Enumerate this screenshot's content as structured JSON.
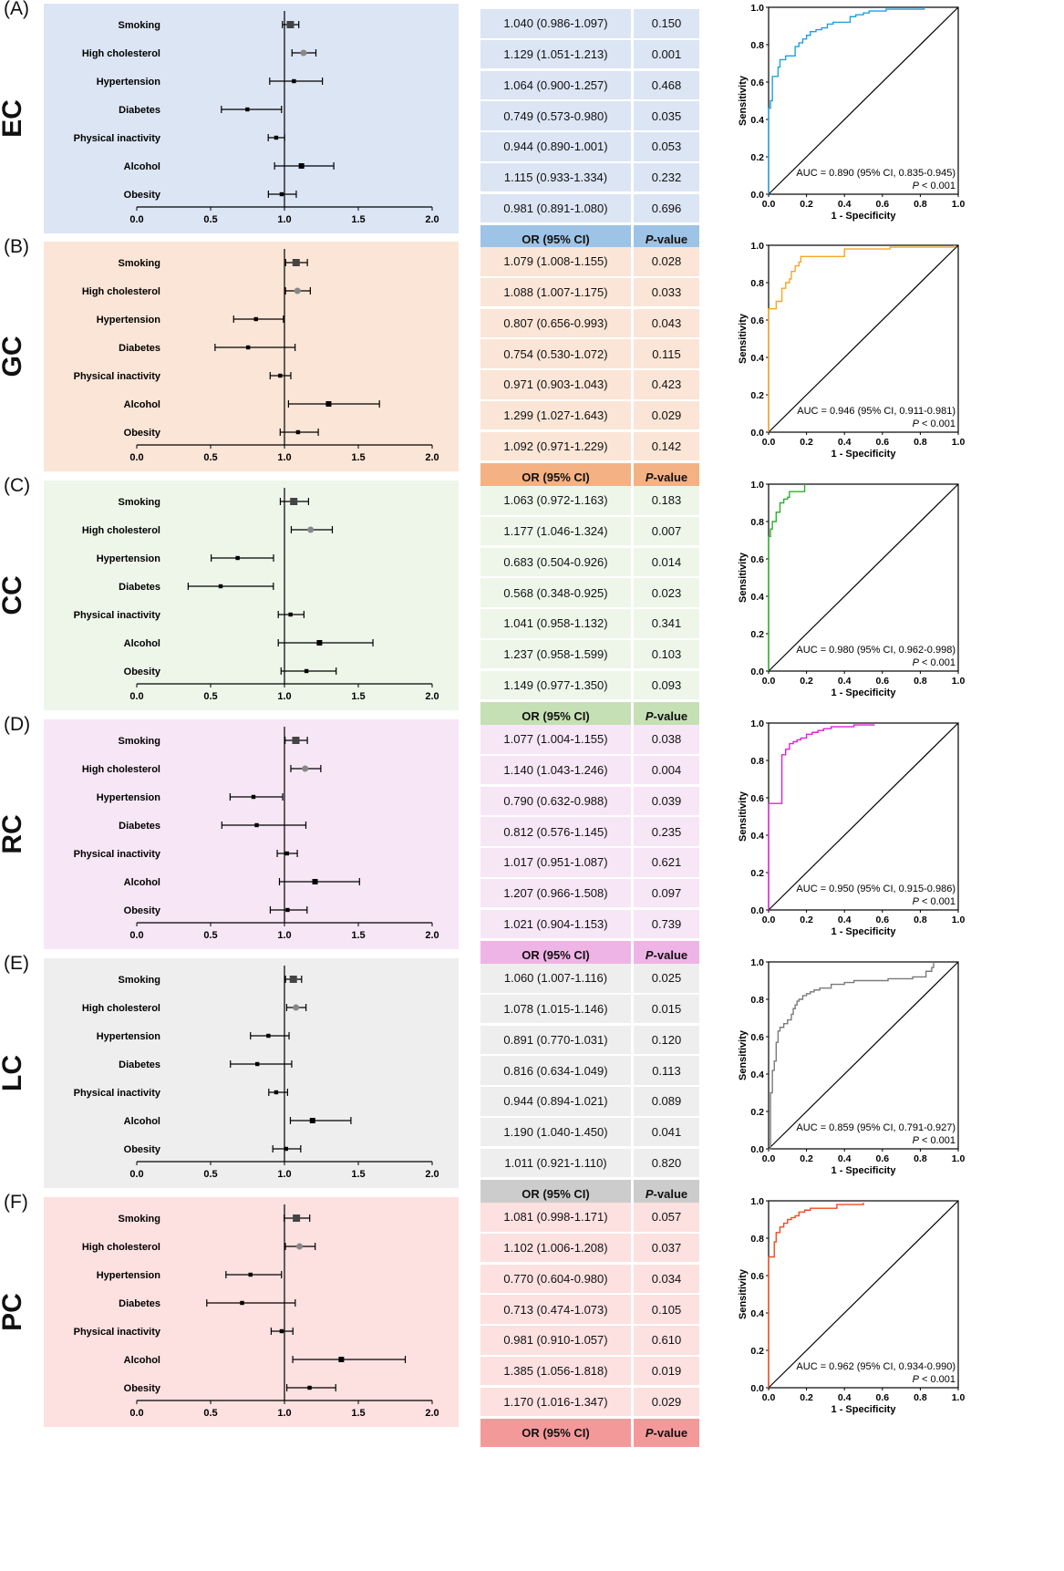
{
  "forest_axis_ticks": [
    "0.0",
    "0.5",
    "1.0",
    "1.5",
    "2.0"
  ],
  "roc_axis_ticks": [
    "0.0",
    "0.2",
    "0.4",
    "0.6",
    "0.8",
    "1.0"
  ],
  "roc_xlabel": "1 - Specificity",
  "roc_ylabel": "Sensitivity",
  "table_header": {
    "or": "OR (95% CI)",
    "p": "P-value"
  },
  "p_prefix": "P",
  "p_suffix": " < 0.001",
  "panels": [
    {
      "letter": "(A)",
      "abbr": "EC",
      "auc": "AUC = 0.890 (95% CI, 0.835-0.945)",
      "bg": "#dce5f4",
      "head": "#9dc3e6",
      "roc_color": "#1fa0e0",
      "or": [
        "1.040 (0.986-1.097)",
        "1.129 (1.051-1.213)",
        "1.064 (0.900-1.257)",
        "0.749 (0.573-0.980)",
        "0.944 (0.890-1.001)",
        "1.115 (0.933-1.334)",
        "0.981 (0.891-1.080)"
      ],
      "p": [
        "0.150",
        "0.001",
        "0.468",
        "0.035",
        "0.053",
        "0.232",
        "0.696"
      ]
    },
    {
      "letter": "(B)",
      "abbr": "GC",
      "auc": "AUC = 0.946 (95% CI, 0.911-0.981)",
      "bg": "#fbe5d6",
      "head": "#f4b183",
      "roc_color": "#f5a623",
      "or": [
        "1.079 (1.008-1.155)",
        "1.088  (1.007-1.175)",
        "0.807 (0.656-0.993)",
        "0.754 (0.530-1.072)",
        "0.971 (0.903-1.043)",
        "1.299 (1.027-1.643)",
        "1.092 (0.971-1.229)"
      ],
      "p": [
        "0.028",
        "0.033",
        "0.043",
        "0.115",
        "0.423",
        "0.029",
        "0.142"
      ]
    },
    {
      "letter": "(C)",
      "abbr": "CC",
      "auc": "AUC = 0.980 (95% CI, 0.962-0.998)",
      "bg": "#eef6ea",
      "head": "#c5e0b4",
      "roc_color": "#2db02d",
      "or": [
        "1.063 (0.972-1.163)",
        "1.177 (1.046-1.324)",
        "0.683 (0.504-0.926)",
        "0.568 (0.348-0.925)",
        "1.041 (0.958-1.132)",
        "1.237 (0.958-1.599)",
        "1.149 (0.977-1.350)"
      ],
      "p": [
        "0.183",
        "0.007",
        "0.014",
        "0.023",
        "0.341",
        "0.103",
        "0.093"
      ]
    },
    {
      "letter": "(D)",
      "abbr": "RC",
      "auc": "AUC = 0.950 (95% CI, 0.915-0.986)",
      "bg": "#f7e6f6",
      "head": "#eeb4e6",
      "roc_color": "#e020d8",
      "or": [
        "1.077 (1.004-1.155)",
        "1.140 (1.043-1.246)",
        "0.790 (0.632-0.988)",
        "0.812 (0.576-1.145)",
        "1.017 (0.951-1.087)",
        "1.207 (0.966-1.508)",
        "1.021 (0.904-1.153)"
      ],
      "p": [
        "0.038",
        "0.004",
        "0.039",
        "0.235",
        "0.621",
        "0.097",
        "0.739"
      ]
    },
    {
      "letter": "(E)",
      "abbr": "LC",
      "auc": "AUC = 0.859 (95% CI, 0.791-0.927)",
      "bg": "#eeeeee",
      "head": "#cccccc",
      "roc_color": "#7a7a7a",
      "or": [
        "1.060 (1.007-1.116)",
        "1.078 (1.015-1.146)",
        "0.891 (0.770-1.031)",
        "0.816 (0.634-1.049)",
        "0.944 (0.894-1.021)",
        "1.190 (1.040-1.450)",
        "1.011 (0.921-1.110)"
      ],
      "p": [
        "0.025",
        "0.015",
        "0.120",
        "0.113",
        "0.089",
        "0.041",
        "0.820"
      ]
    },
    {
      "letter": "(F)",
      "abbr": "PC",
      "auc": "AUC = 0.962 (95% CI, 0.934-0.990)",
      "bg": "#fde0e0",
      "head": "#f4999a",
      "roc_color": "#f04a1e",
      "or": [
        "1.081 (0.998-1.171)",
        "1.102 (1.006-1.208)",
        "0.770 (0.604-0.980)",
        "0.713 (0.474-1.073)",
        "0.981 (0.910-1.057)",
        "1.385 (1.056-1.818)",
        "1.170 (1.016-1.347)"
      ],
      "p": [
        "0.057",
        "0.037",
        "0.034",
        "0.105",
        "0.610",
        "0.019",
        "0.029"
      ]
    }
  ],
  "chart_data": [
    {
      "type": "scatter",
      "subtype": "forest",
      "panel": "A",
      "xlim": [
        0,
        2
      ],
      "categories": [
        "Smoking",
        "High cholesterol",
        "Hypertension",
        "Diabetes",
        "Physical inactivity",
        "Alcohol",
        "Obesity"
      ],
      "or": [
        1.04,
        1.129,
        1.064,
        0.749,
        0.944,
        1.115,
        0.981
      ],
      "lower": [
        0.986,
        1.051,
        0.9,
        0.573,
        0.89,
        0.933,
        0.891
      ],
      "upper": [
        1.097,
        1.213,
        1.257,
        0.98,
        1.001,
        1.334,
        1.08
      ]
    },
    {
      "type": "line",
      "subtype": "roc",
      "panel": "A",
      "xlim": [
        0,
        1
      ],
      "ylim": [
        0,
        1
      ],
      "xlabel": "1 - Specificity",
      "ylabel": "Sensitivity",
      "x": [
        0,
        0,
        0.01,
        0.01,
        0.02,
        0.02,
        0.05,
        0.05,
        0.06,
        0.09,
        0.14,
        0.14,
        0.16,
        0.18,
        0.2,
        0.22,
        0.25,
        0.28,
        0.31,
        0.34,
        0.38,
        0.43,
        0.46,
        0.5,
        0.53,
        0.57,
        0.62,
        0.82
      ],
      "y": [
        0,
        0.46,
        0.46,
        0.5,
        0.5,
        0.63,
        0.63,
        0.68,
        0.72,
        0.74,
        0.74,
        0.79,
        0.81,
        0.83,
        0.85,
        0.87,
        0.88,
        0.89,
        0.91,
        0.92,
        0.92,
        0.95,
        0.96,
        0.97,
        0.98,
        0.98,
        0.99,
        1.0
      ]
    },
    {
      "type": "scatter",
      "subtype": "forest",
      "panel": "B",
      "xlim": [
        0,
        2
      ],
      "categories": [
        "Smoking",
        "High cholesterol",
        "Hypertension",
        "Diabetes",
        "Physical inactivity",
        "Alcohol",
        "Obesity"
      ],
      "or": [
        1.079,
        1.088,
        0.807,
        0.754,
        0.971,
        1.299,
        1.092
      ],
      "lower": [
        1.008,
        1.007,
        0.656,
        0.53,
        0.903,
        1.027,
        0.971
      ],
      "upper": [
        1.155,
        1.175,
        0.993,
        1.072,
        1.043,
        1.643,
        1.229
      ]
    },
    {
      "type": "line",
      "subtype": "roc",
      "panel": "B",
      "xlim": [
        0,
        1
      ],
      "ylim": [
        0,
        1
      ],
      "xlabel": "1 - Specificity",
      "ylabel": "Sensitivity",
      "x": [
        0,
        0,
        0.04,
        0.04,
        0.07,
        0.07,
        0.09,
        0.11,
        0.12,
        0.14,
        0.16,
        0.17,
        0.4,
        0.4,
        0.64,
        0.98
      ],
      "y": [
        0,
        0.66,
        0.66,
        0.7,
        0.72,
        0.77,
        0.8,
        0.82,
        0.86,
        0.89,
        0.91,
        0.94,
        0.94,
        0.98,
        0.99,
        1.0
      ]
    },
    {
      "type": "scatter",
      "subtype": "forest",
      "panel": "C",
      "xlim": [
        0,
        2
      ],
      "categories": [
        "Smoking",
        "High cholesterol",
        "Hypertension",
        "Diabetes",
        "Physical inactivity",
        "Alcohol",
        "Obesity"
      ],
      "or": [
        1.063,
        1.177,
        0.683,
        0.568,
        1.041,
        1.237,
        1.149
      ],
      "lower": [
        0.972,
        1.046,
        0.504,
        0.348,
        0.958,
        0.958,
        0.977
      ],
      "upper": [
        1.163,
        1.324,
        0.926,
        0.925,
        1.132,
        1.599,
        1.35
      ]
    },
    {
      "type": "line",
      "subtype": "roc",
      "panel": "C",
      "xlim": [
        0,
        1
      ],
      "ylim": [
        0,
        1
      ],
      "xlabel": "1 - Specificity",
      "ylabel": "Sensitivity",
      "x": [
        0,
        0,
        0.01,
        0.01,
        0.02,
        0.02,
        0.04,
        0.06,
        0.06,
        0.08,
        0.1,
        0.11,
        0.19,
        0.19
      ],
      "y": [
        0,
        0.72,
        0.72,
        0.76,
        0.79,
        0.8,
        0.85,
        0.87,
        0.9,
        0.92,
        0.93,
        0.96,
        0.96,
        1.0
      ]
    },
    {
      "type": "scatter",
      "subtype": "forest",
      "panel": "D",
      "xlim": [
        0,
        2
      ],
      "categories": [
        "Smoking",
        "High cholesterol",
        "Hypertension",
        "Diabetes",
        "Physical inactivity",
        "Alcohol",
        "Obesity"
      ],
      "or": [
        1.077,
        1.14,
        0.79,
        0.812,
        1.017,
        1.207,
        1.021
      ],
      "lower": [
        1.004,
        1.043,
        0.632,
        0.576,
        0.951,
        0.966,
        0.904
      ],
      "upper": [
        1.155,
        1.246,
        0.988,
        1.145,
        1.087,
        1.508,
        1.153
      ]
    },
    {
      "type": "line",
      "subtype": "roc",
      "panel": "D",
      "xlim": [
        0,
        1
      ],
      "ylim": [
        0,
        1
      ],
      "xlabel": "1 - Specificity",
      "ylabel": "Sensitivity",
      "x": [
        0,
        0,
        0.07,
        0.07,
        0.09,
        0.11,
        0.13,
        0.15,
        0.17,
        0.2,
        0.23,
        0.26,
        0.29,
        0.33,
        0.37,
        0.45,
        0.56
      ],
      "y": [
        0,
        0.57,
        0.57,
        0.83,
        0.86,
        0.89,
        0.9,
        0.91,
        0.92,
        0.94,
        0.95,
        0.96,
        0.97,
        0.98,
        0.98,
        0.99,
        0.99
      ]
    },
    {
      "type": "scatter",
      "subtype": "forest",
      "panel": "E",
      "xlim": [
        0,
        2
      ],
      "categories": [
        "Smoking",
        "High cholesterol",
        "Hypertension",
        "Diabetes",
        "Physical inactivity",
        "Alcohol",
        "Obesity"
      ],
      "or": [
        1.06,
        1.078,
        0.891,
        0.816,
        0.944,
        1.19,
        1.011
      ],
      "lower": [
        1.007,
        1.015,
        0.77,
        0.634,
        0.894,
        1.04,
        0.921
      ],
      "upper": [
        1.116,
        1.146,
        1.031,
        1.049,
        1.021,
        1.45,
        1.11
      ]
    },
    {
      "type": "line",
      "subtype": "roc",
      "panel": "E",
      "xlim": [
        0,
        1
      ],
      "ylim": [
        0,
        1
      ],
      "xlabel": "1 - Specificity",
      "ylabel": "Sensitivity",
      "x": [
        0,
        0.01,
        0.02,
        0.02,
        0.03,
        0.04,
        0.05,
        0.06,
        0.08,
        0.1,
        0.12,
        0.13,
        0.14,
        0.15,
        0.16,
        0.18,
        0.2,
        0.22,
        0.24,
        0.27,
        0.29,
        0.33,
        0.36,
        0.4,
        0.45,
        0.55,
        0.63,
        0.76,
        0.83,
        0.86,
        0.87,
        0.87
      ],
      "y": [
        0,
        0.3,
        0.3,
        0.42,
        0.47,
        0.57,
        0.63,
        0.65,
        0.67,
        0.69,
        0.72,
        0.75,
        0.77,
        0.79,
        0.8,
        0.82,
        0.83,
        0.84,
        0.85,
        0.86,
        0.86,
        0.88,
        0.88,
        0.89,
        0.9,
        0.9,
        0.91,
        0.92,
        0.95,
        0.97,
        0.98,
        1.0
      ]
    },
    {
      "type": "scatter",
      "subtype": "forest",
      "panel": "F",
      "xlim": [
        0,
        2
      ],
      "categories": [
        "Smoking",
        "High cholesterol",
        "Hypertension",
        "Diabetes",
        "Physical inactivity",
        "Alcohol",
        "Obesity"
      ],
      "or": [
        1.081,
        1.102,
        0.77,
        0.713,
        0.981,
        1.385,
        1.17
      ],
      "lower": [
        0.998,
        1.006,
        0.604,
        0.474,
        0.91,
        1.056,
        1.016
      ],
      "upper": [
        1.171,
        1.208,
        0.98,
        1.073,
        1.057,
        1.818,
        1.347
      ]
    },
    {
      "type": "line",
      "subtype": "roc",
      "panel": "F",
      "xlim": [
        0,
        1
      ],
      "ylim": [
        0,
        1
      ],
      "xlabel": "1 - Specificity",
      "ylabel": "Sensitivity",
      "x": [
        0,
        0,
        0.03,
        0.03,
        0.04,
        0.06,
        0.08,
        0.1,
        0.12,
        0.14,
        0.16,
        0.19,
        0.22,
        0.27,
        0.36,
        0.5
      ],
      "y": [
        0,
        0.7,
        0.7,
        0.78,
        0.83,
        0.86,
        0.88,
        0.9,
        0.91,
        0.92,
        0.94,
        0.95,
        0.96,
        0.96,
        0.98,
        0.99
      ]
    }
  ]
}
